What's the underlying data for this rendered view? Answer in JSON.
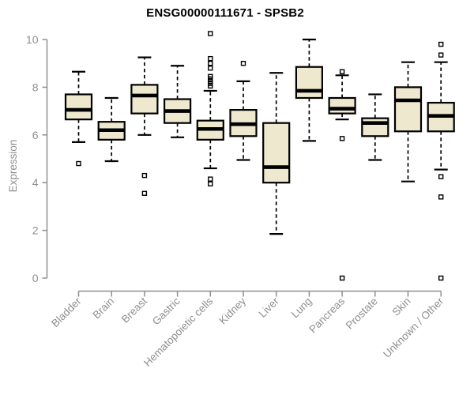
{
  "chart_data": {
    "type": "boxplot",
    "title": "ENSG00000111671 - SPSB2",
    "xlabel": "",
    "ylabel": "Expression",
    "ylim": [
      0,
      10
    ],
    "yticks": [
      0,
      2,
      4,
      6,
      8,
      10
    ],
    "grid": false,
    "legend": "none",
    "colors": {
      "box_fill": "#EDE8CE",
      "box_stroke": "#000000",
      "median": "#000000",
      "whisker": "#000000",
      "outlier": "#000000",
      "axis": "#8F8F8F",
      "title": "#000000"
    },
    "categories": [
      "Bladder",
      "Brain",
      "Breast",
      "Gastric",
      "Hematopoietic cells",
      "Kidney",
      "Liver",
      "Lung",
      "Pancreas",
      "Prostate",
      "Skin",
      "Unknown / Other"
    ],
    "series": [
      {
        "label": "Bladder",
        "whisker_low": 5.7,
        "q1": 6.65,
        "median": 7.05,
        "q3": 7.7,
        "whisker_high": 8.65,
        "outliers": [
          4.8
        ]
      },
      {
        "label": "Brain",
        "whisker_low": 4.9,
        "q1": 5.8,
        "median": 6.2,
        "q3": 6.55,
        "whisker_high": 7.55,
        "outliers": []
      },
      {
        "label": "Breast",
        "whisker_low": 6.0,
        "q1": 6.9,
        "median": 7.65,
        "q3": 8.1,
        "whisker_high": 9.25,
        "outliers": [
          4.3,
          3.55
        ]
      },
      {
        "label": "Gastric",
        "whisker_low": 5.9,
        "q1": 6.5,
        "median": 7.0,
        "q3": 7.5,
        "whisker_high": 8.9,
        "outliers": []
      },
      {
        "label": "Hematopoietic cells",
        "whisker_low": 4.6,
        "q1": 5.8,
        "median": 6.25,
        "q3": 6.6,
        "whisker_high": 7.85,
        "outliers": [
          10.25,
          9.2,
          9.0,
          8.8,
          8.45,
          8.35,
          8.25,
          8.15,
          8.05,
          4.15,
          3.95
        ]
      },
      {
        "label": "Kidney",
        "whisker_low": 4.95,
        "q1": 5.95,
        "median": 6.45,
        "q3": 7.05,
        "whisker_high": 8.25,
        "outliers": [
          9.0
        ]
      },
      {
        "label": "Liver",
        "whisker_low": 1.85,
        "q1": 4.0,
        "median": 4.65,
        "q3": 6.5,
        "whisker_high": 8.6,
        "outliers": []
      },
      {
        "label": "Lung",
        "whisker_low": 5.75,
        "q1": 7.55,
        "median": 7.85,
        "q3": 8.85,
        "whisker_high": 10.0,
        "outliers": []
      },
      {
        "label": "Pancreas",
        "whisker_low": 6.65,
        "q1": 6.9,
        "median": 7.1,
        "q3": 7.55,
        "whisker_high": 8.5,
        "outliers": [
          8.65,
          5.85,
          0.0
        ]
      },
      {
        "label": "Prostate",
        "whisker_low": 4.95,
        "q1": 5.95,
        "median": 6.5,
        "q3": 6.7,
        "whisker_high": 7.7,
        "outliers": []
      },
      {
        "label": "Skin",
        "whisker_low": 4.05,
        "q1": 6.15,
        "median": 7.45,
        "q3": 8.0,
        "whisker_high": 9.05,
        "outliers": []
      },
      {
        "label": "Unknown / Other",
        "whisker_low": 4.55,
        "q1": 6.15,
        "median": 6.8,
        "q3": 7.35,
        "whisker_high": 9.05,
        "outliers": [
          9.8,
          9.35,
          4.25,
          3.4,
          0.0
        ]
      }
    ]
  }
}
